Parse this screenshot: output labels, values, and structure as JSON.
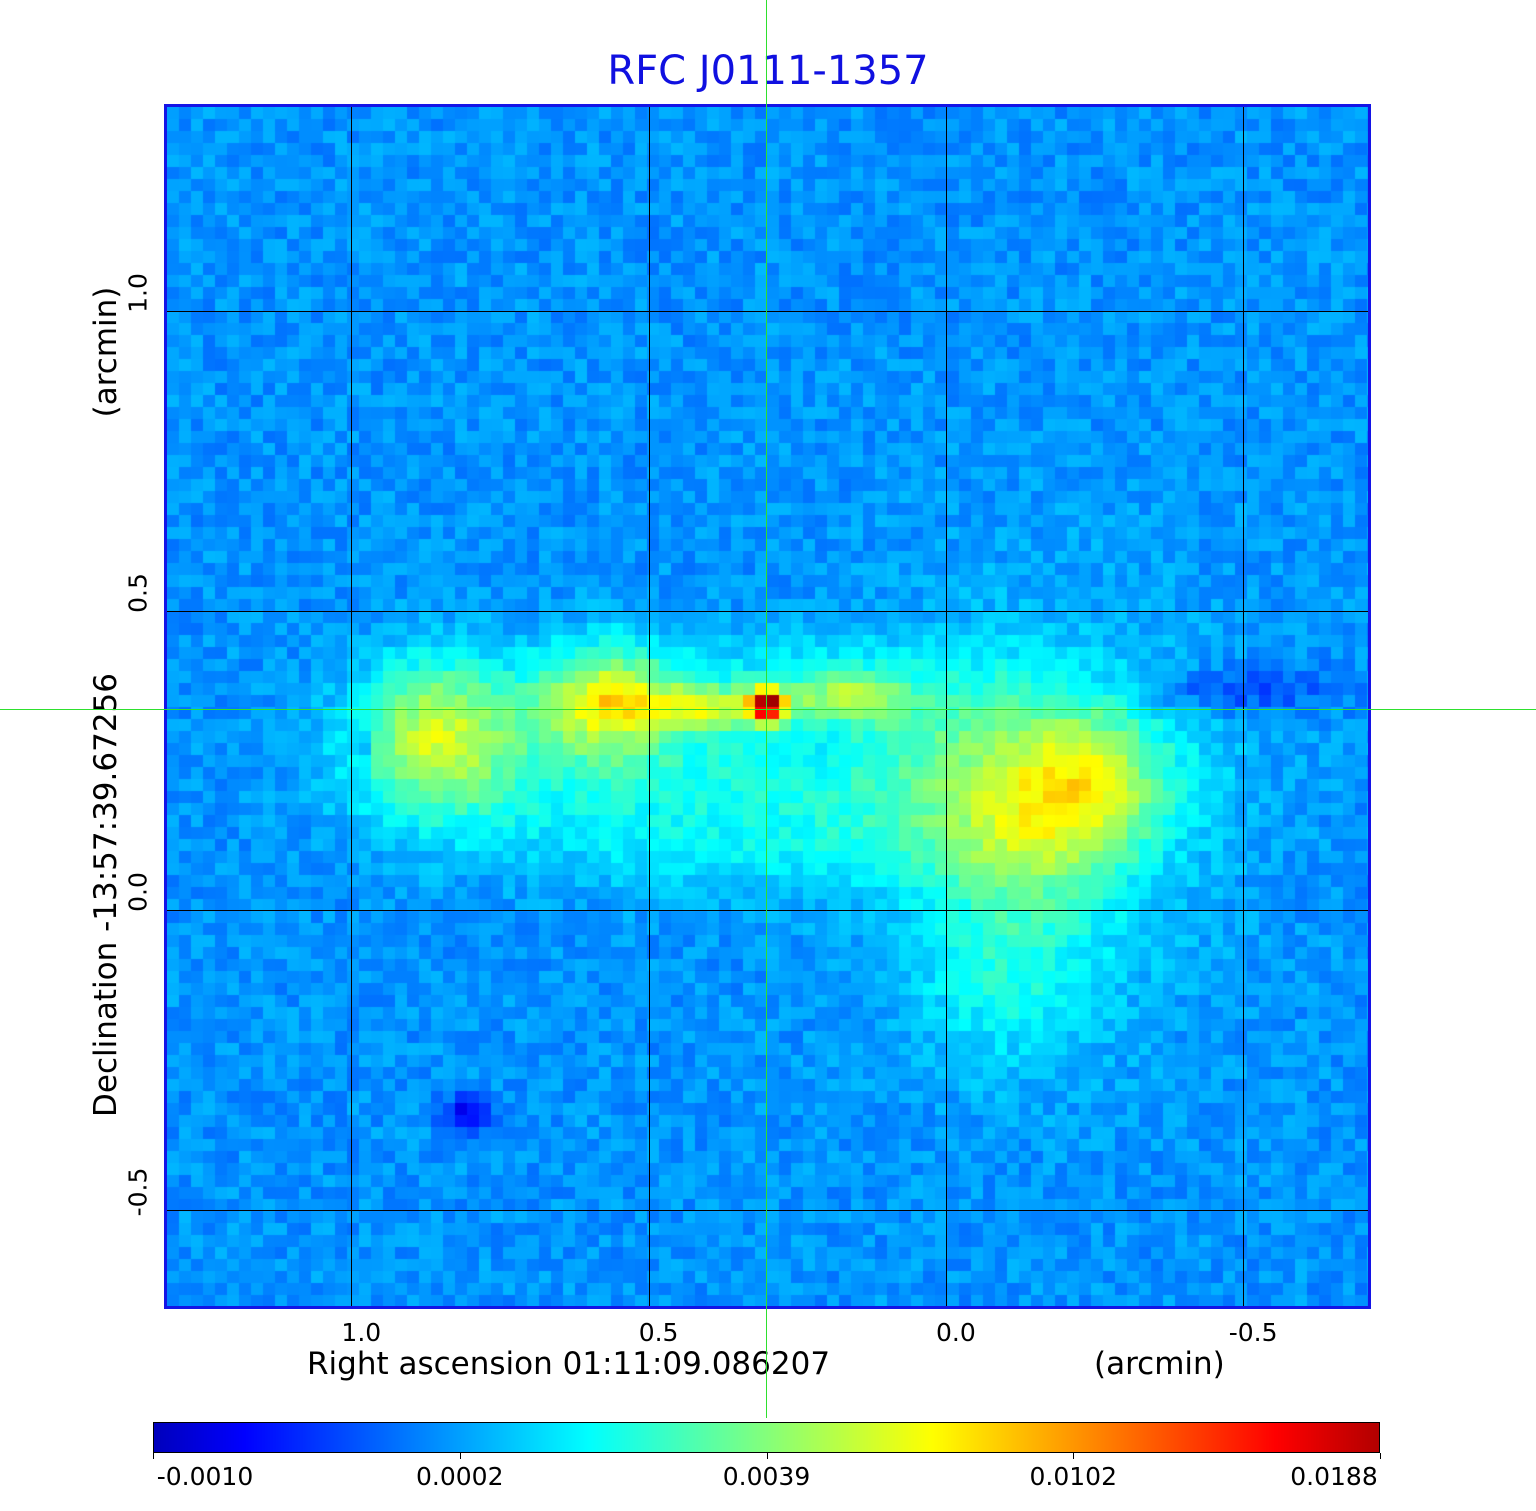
{
  "chart_data": {
    "type": "heatmap",
    "title": "RFC J0111-1357",
    "xlabel": "Right ascension  01:11:09.086207",
    "xunit": "(arcmin)",
    "ylabel": "Declination  -13:57:39.67256",
    "yunit": "(arcmin)",
    "x_ticks": [
      "1.0",
      "0.5",
      "0.0",
      "-0.5"
    ],
    "x_tick_values": [
      1.0,
      0.5,
      0.0,
      -0.5
    ],
    "y_ticks": [
      "1.0",
      "0.5",
      "0.0",
      "-0.5"
    ],
    "y_tick_values": [
      1.0,
      0.5,
      0.0,
      -0.5
    ],
    "xlim": [
      1.31,
      -0.71
    ],
    "ylim": [
      -0.66,
      1.34
    ],
    "grid": true,
    "crosshair": {
      "x": 0.3,
      "y": 0.34,
      "color": "#2ee02e"
    },
    "colormap": "jet",
    "colorbar": {
      "ticks": [
        "-0.0010",
        "0.0002",
        "0.0039",
        "0.0102",
        "0.0188"
      ],
      "placement": "bottom"
    },
    "colors": {
      "title": "#1010e0",
      "frame": "#1414e6",
      "grid": "#000000"
    }
  }
}
